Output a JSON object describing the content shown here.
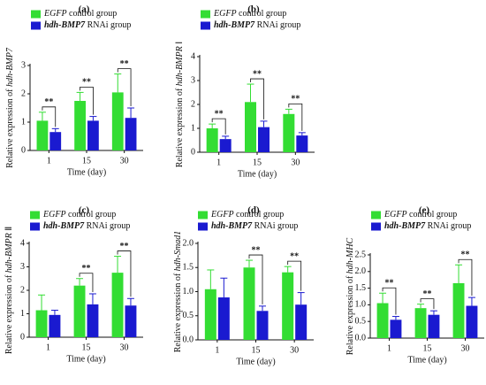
{
  "colors": {
    "control": "#33dd33",
    "rnai": "#1a1ad0"
  },
  "legend": {
    "control_italic": "EGFP",
    "control_rest": " control group",
    "rnai_italic": "hdh-BMP7",
    "rnai_rest": " RNAi group"
  },
  "significance": "**",
  "chart_data": [
    {
      "type": "bar",
      "panel_label": "(a)",
      "xlabel": "Time (day)",
      "ylabel_plain": "Relative expression of ",
      "ylabel_italic": "hdh-BMP7",
      "ylabel_suffix": "",
      "categories": [
        "1",
        "15",
        "30"
      ],
      "ylim": [
        0,
        3
      ],
      "yticks": [
        0,
        1,
        2,
        3
      ],
      "ytick_labels": [
        "0",
        "1",
        "2",
        "3"
      ],
      "legend_position": "top-left",
      "series": [
        {
          "key": "control",
          "values": [
            1.05,
            1.75,
            2.05
          ],
          "errors": [
            0.3,
            0.3,
            0.65
          ]
        },
        {
          "key": "rnai",
          "values": [
            0.65,
            1.05,
            1.15
          ],
          "errors": [
            0.12,
            0.15,
            0.35
          ]
        }
      ],
      "significant": [
        true,
        true,
        true
      ]
    },
    {
      "type": "bar",
      "panel_label": "(b)",
      "xlabel": "Time (day)",
      "ylabel_plain": "Relative expression of ",
      "ylabel_italic": "hdh-BMPR",
      "ylabel_suffix": " Ⅰ",
      "categories": [
        "1",
        "15",
        "30"
      ],
      "ylim": [
        0,
        4
      ],
      "yticks": [
        0,
        1,
        2,
        3,
        4
      ],
      "ytick_labels": [
        "0",
        "1",
        "2",
        "3",
        "4"
      ],
      "legend_position": "top-left",
      "series": [
        {
          "key": "control",
          "values": [
            1.0,
            2.1,
            1.6
          ],
          "errors": [
            0.18,
            0.75,
            0.2
          ]
        },
        {
          "key": "rnai",
          "values": [
            0.55,
            1.05,
            0.7
          ],
          "errors": [
            0.12,
            0.25,
            0.12
          ]
        }
      ],
      "significant": [
        true,
        true,
        true
      ]
    },
    {
      "type": "bar",
      "panel_label": "(c)",
      "xlabel": "Time (day)",
      "ylabel_plain": "Relative expression of ",
      "ylabel_italic": "hdh-BMPR",
      "ylabel_suffix": " Ⅱ",
      "categories": [
        "1",
        "15",
        "30"
      ],
      "ylim": [
        0,
        4
      ],
      "yticks": [
        0,
        1,
        2,
        3,
        4
      ],
      "ytick_labels": [
        "0",
        "1",
        "2",
        "3",
        "4"
      ],
      "legend_position": "top-left",
      "series": [
        {
          "key": "control",
          "values": [
            1.15,
            2.2,
            2.75
          ],
          "errors": [
            0.65,
            0.3,
            0.7
          ]
        },
        {
          "key": "rnai",
          "values": [
            0.95,
            1.4,
            1.35
          ],
          "errors": [
            0.2,
            0.45,
            0.3
          ]
        }
      ],
      "significant": [
        false,
        true,
        true
      ]
    },
    {
      "type": "bar",
      "panel_label": "(d)",
      "xlabel": "Time (day)",
      "ylabel_plain": "Relative expression of ",
      "ylabel_italic": "hdh-Smad1",
      "ylabel_suffix": "",
      "categories": [
        "1",
        "15",
        "30"
      ],
      "ylim": [
        0,
        2
      ],
      "yticks": [
        0,
        0.5,
        1.0,
        1.5,
        2.0
      ],
      "ytick_labels": [
        "0.0",
        "0.5",
        "1.0",
        "1.5",
        "2.0"
      ],
      "legend_position": "top-left",
      "series": [
        {
          "key": "control",
          "values": [
            1.05,
            1.5,
            1.4
          ],
          "errors": [
            0.4,
            0.15,
            0.12
          ]
        },
        {
          "key": "rnai",
          "values": [
            0.88,
            0.6,
            0.73
          ],
          "errors": [
            0.4,
            0.1,
            0.25
          ]
        }
      ],
      "significant": [
        false,
        true,
        true
      ]
    },
    {
      "type": "bar",
      "panel_label": "(e)",
      "xlabel": "Time (day)",
      "ylabel_plain": "Relative expression of ",
      "ylabel_italic": "hdh-MHC",
      "ylabel_suffix": "",
      "categories": [
        "1",
        "15",
        "30"
      ],
      "ylim": [
        0,
        2.5
      ],
      "yticks": [
        0,
        0.5,
        1.0,
        1.5,
        2.0,
        2.5
      ],
      "ytick_labels": [
        "0.0",
        "0.5",
        "1.0",
        "1.5",
        "2.0",
        "2.5"
      ],
      "legend_position": "top-left",
      "series": [
        {
          "key": "control",
          "values": [
            1.05,
            0.9,
            1.65
          ],
          "errors": [
            0.3,
            0.12,
            0.55
          ]
        },
        {
          "key": "rnai",
          "values": [
            0.55,
            0.7,
            0.97
          ],
          "errors": [
            0.1,
            0.12,
            0.25
          ]
        }
      ],
      "significant": [
        true,
        true,
        true
      ]
    }
  ]
}
